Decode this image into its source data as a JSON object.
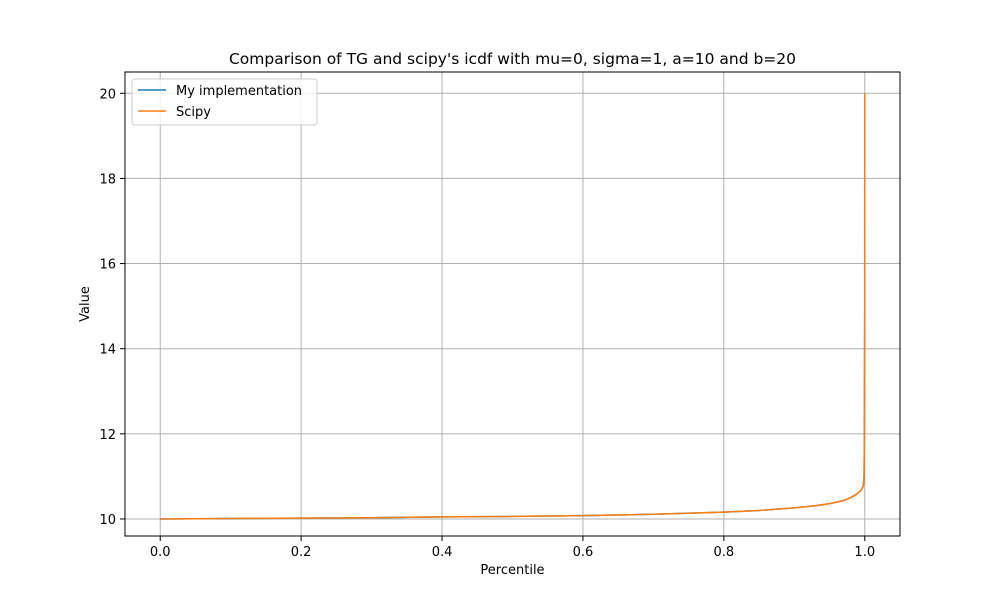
{
  "chart_data": {
    "type": "line",
    "title": "Comparison of TG and scipy's icdf with mu=0, sigma=1, a=10 and b=20",
    "xlabel": "Percentile",
    "ylabel": "Value",
    "xlim": [
      -0.05,
      1.05
    ],
    "ylim": [
      9.6,
      20.5
    ],
    "xticks": [
      0.0,
      0.2,
      0.4,
      0.6,
      0.8,
      1.0
    ],
    "xtick_labels": [
      "0.0",
      "0.2",
      "0.4",
      "0.6",
      "0.8",
      "1.0"
    ],
    "yticks": [
      10,
      12,
      14,
      16,
      18,
      20
    ],
    "ytick_labels": [
      "10",
      "12",
      "14",
      "16",
      "18",
      "20"
    ],
    "grid": true,
    "legend_position": "upper-left",
    "series": [
      {
        "name": "My implementation",
        "color": "#1f77b4",
        "x": [
          0.0,
          0.1,
          0.2,
          0.3,
          0.4,
          0.5,
          0.6,
          0.7,
          0.8,
          0.85,
          0.9,
          0.93,
          0.95,
          0.97,
          0.98,
          0.99,
          0.995,
          0.998,
          0.999,
          0.9995,
          0.9999,
          1.0
        ],
        "y": [
          10.0,
          10.01,
          10.02,
          10.03,
          10.05,
          10.06,
          10.08,
          10.11,
          10.16,
          10.2,
          10.26,
          10.31,
          10.36,
          10.43,
          10.5,
          10.6,
          10.68,
          10.78,
          11.0,
          12.0,
          15.0,
          20.0
        ]
      },
      {
        "name": "Scipy",
        "color": "#ff7f0e",
        "x": [
          0.0,
          0.1,
          0.2,
          0.3,
          0.4,
          0.5,
          0.6,
          0.7,
          0.8,
          0.85,
          0.9,
          0.93,
          0.95,
          0.97,
          0.98,
          0.99,
          0.995,
          0.998,
          0.999,
          0.9995,
          0.9999,
          1.0
        ],
        "y": [
          10.0,
          10.01,
          10.02,
          10.03,
          10.05,
          10.06,
          10.08,
          10.11,
          10.16,
          10.2,
          10.26,
          10.31,
          10.36,
          10.43,
          10.5,
          10.6,
          10.68,
          10.78,
          11.0,
          12.0,
          15.0,
          20.0
        ]
      }
    ]
  }
}
